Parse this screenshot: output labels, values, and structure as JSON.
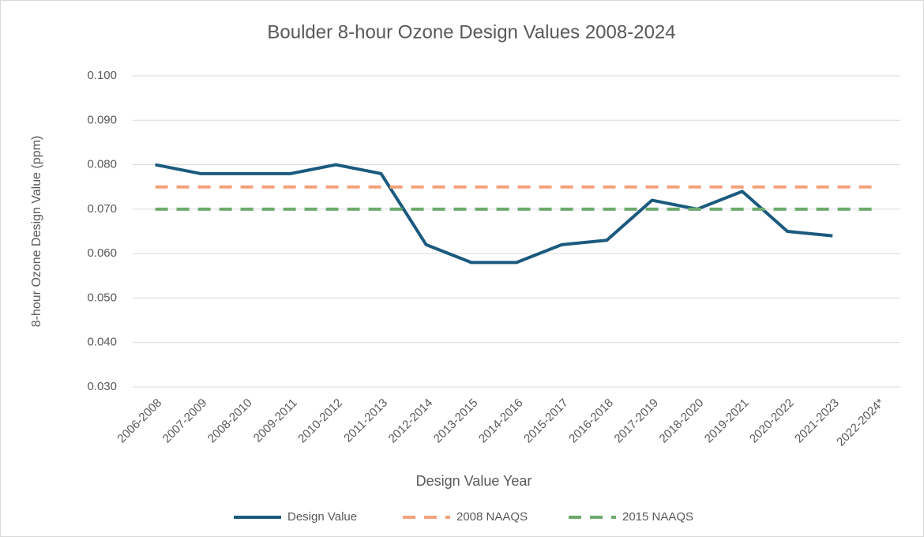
{
  "chart_data": {
    "type": "line",
    "title": "Boulder 8-hour Ozone Design Values 2008-2024",
    "xlabel": "Design Value Year",
    "ylabel": "8-hour Ozone Design Value (ppm)",
    "categories": [
      "2006-2008",
      "2007-2009",
      "2008-2010",
      "2009-2011",
      "2010-2012",
      "2011-2013",
      "2012-2014",
      "2013-2015",
      "2014-2016",
      "2015-2017",
      "2016-2018",
      "2017-2019",
      "2018-2020",
      "2019-2021",
      "2020-2022",
      "2021-2023",
      "2022-2024*"
    ],
    "series": [
      {
        "name": "Design Value",
        "color": "#1b5a7e",
        "dashed": false,
        "values": [
          0.08,
          0.078,
          0.078,
          0.078,
          0.08,
          0.078,
          0.062,
          0.058,
          0.058,
          0.062,
          0.063,
          0.072,
          0.07,
          0.074,
          0.065,
          0.064,
          null
        ]
      },
      {
        "name": "2008 NAAQS",
        "color": "#f2a27c",
        "dashed": true,
        "values": [
          0.075,
          0.075,
          0.075,
          0.075,
          0.075,
          0.075,
          0.075,
          0.075,
          0.075,
          0.075,
          0.075,
          0.075,
          0.075,
          0.075,
          0.075,
          0.075,
          0.075
        ]
      },
      {
        "name": "2015 NAAQS",
        "color": "#6eaa6e",
        "dashed": true,
        "values": [
          0.07,
          0.07,
          0.07,
          0.07,
          0.07,
          0.07,
          0.07,
          0.07,
          0.07,
          0.07,
          0.07,
          0.07,
          0.07,
          0.07,
          0.07,
          0.07,
          0.07
        ]
      }
    ],
    "ylim": [
      0.03,
      0.1
    ],
    "yticks": [
      {
        "value": 0.03,
        "label": "0.030"
      },
      {
        "value": 0.04,
        "label": "0.040"
      },
      {
        "value": 0.05,
        "label": "0.050"
      },
      {
        "value": 0.06,
        "label": "0.060"
      },
      {
        "value": 0.07,
        "label": "0.070"
      },
      {
        "value": 0.08,
        "label": "0.080"
      },
      {
        "value": 0.09,
        "label": "0.090"
      },
      {
        "value": 0.1,
        "label": "0.100"
      }
    ],
    "grid": true,
    "legend": "bottom"
  }
}
